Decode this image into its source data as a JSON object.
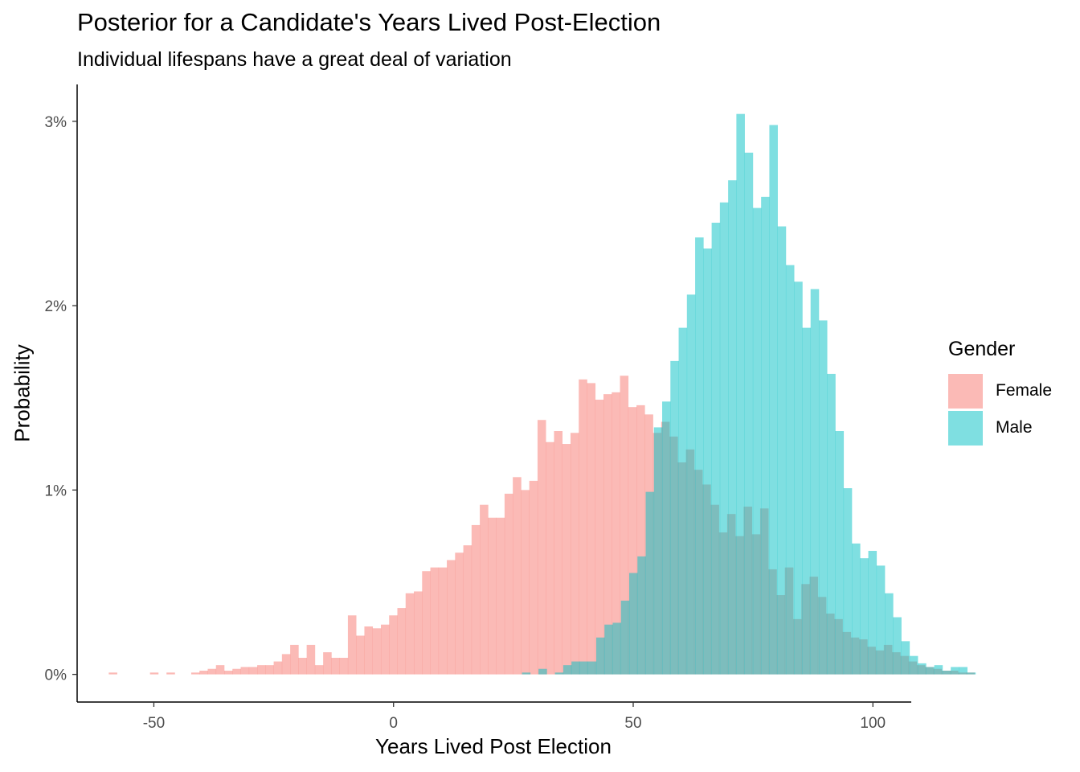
{
  "colors": {
    "female": "#F8766D",
    "male": "#00BFC4",
    "axis": "#000000",
    "tick_text": "#4d4d4d"
  },
  "chart_data": {
    "type": "histogram",
    "title": "Posterior for a Candidate's Years Lived Post-Election",
    "subtitle": "Individual lifespans have a great deal of variation",
    "xlabel": "Years Lived Post Election",
    "ylabel": "Probability",
    "xlim": [
      -66,
      108
    ],
    "ylim": [
      -0.0015,
      0.032
    ],
    "x_ticks": [
      -50,
      0,
      50,
      100
    ],
    "x_tick_labels": [
      "-50",
      "0",
      "50",
      "100"
    ],
    "y_ticks": [
      0,
      0.01,
      0.02,
      0.03
    ],
    "y_tick_labels": [
      "0%",
      "1%",
      "2%",
      "3%"
    ],
    "grid": false,
    "fill_alpha": 0.5,
    "legend": {
      "title": "Gender",
      "position": "right"
    },
    "bin_width": 1.72,
    "series": [
      {
        "name": "Female",
        "color": "#F8766D",
        "bin_start": -59.4,
        "values": [
          0.0001,
          0,
          0,
          0,
          0,
          0.0001,
          0,
          0.0001,
          0,
          0,
          0.0001,
          0.0002,
          0.0003,
          0.0005,
          0.0002,
          0.0003,
          0.0004,
          0.0004,
          0.0005,
          0.0005,
          0.0007,
          0.0011,
          0.0016,
          0.0009,
          0.0016,
          0.0005,
          0.0012,
          0.0009,
          0.0009,
          0.0032,
          0.0021,
          0.0026,
          0.0025,
          0.0027,
          0.0032,
          0.0036,
          0.0044,
          0.0045,
          0.0056,
          0.0058,
          0.0058,
          0.0062,
          0.0066,
          0.007,
          0.0081,
          0.0092,
          0.0085,
          0.0085,
          0.0098,
          0.0107,
          0.01,
          0.0105,
          0.0138,
          0.0126,
          0.0132,
          0.0125,
          0.0131,
          0.016,
          0.0158,
          0.0149,
          0.0152,
          0.0153,
          0.0162,
          0.0145,
          0.0146,
          0.0141,
          0.0131,
          0.0137,
          0.0129,
          0.0115,
          0.0122,
          0.0111,
          0.0103,
          0.0092,
          0.0077,
          0.0087,
          0.0075,
          0.0091,
          0.0076,
          0.009,
          0.0057,
          0.0043,
          0.0058,
          0.003,
          0.0049,
          0.0053,
          0.0042,
          0.0033,
          0.003,
          0.0023,
          0.002,
          0.0019,
          0.0015,
          0.0013,
          0.0016,
          0.0012,
          0.001,
          0.0007,
          0.0005,
          0.0004,
          0.0003,
          0.0002,
          0.0002,
          0.0001,
          0.0001
        ]
      },
      {
        "name": "Male",
        "color": "#00BFC4",
        "bin_start": 26.8,
        "values": [
          0.0001,
          0,
          0.0003,
          0,
          0.0001,
          0.0005,
          0.0007,
          0.0007,
          0.0007,
          0.002,
          0.0027,
          0.0028,
          0.004,
          0.0055,
          0.0064,
          0.0099,
          0.0134,
          0.0148,
          0.017,
          0.0188,
          0.0206,
          0.0237,
          0.0231,
          0.0245,
          0.0256,
          0.0268,
          0.0304,
          0.0283,
          0.0253,
          0.0259,
          0.0298,
          0.0243,
          0.0222,
          0.0213,
          0.0188,
          0.0209,
          0.0192,
          0.0163,
          0.0132,
          0.0101,
          0.0071,
          0.0063,
          0.0067,
          0.0059,
          0.0044,
          0.0031,
          0.0018,
          0.001,
          0.0006,
          0.0004,
          0.0005,
          0.0002,
          0.0004,
          0.0004,
          0.0001
        ]
      }
    ]
  }
}
